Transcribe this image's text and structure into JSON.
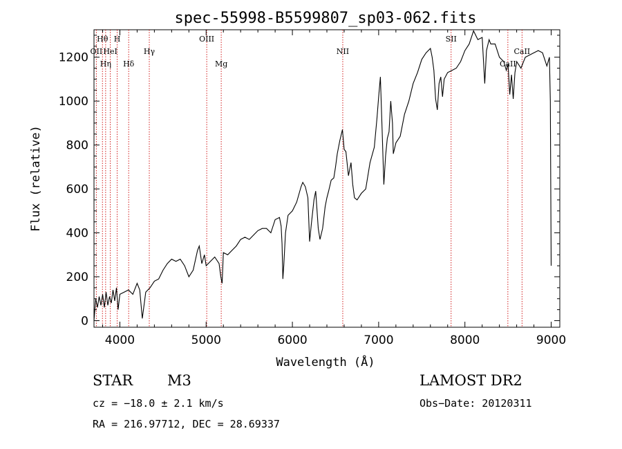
{
  "chart_data": {
    "type": "line",
    "title": "spec-55998-B5599807_sp03-062.fits",
    "xlabel": "Wavelength (Å)",
    "ylabel": "Flux (relative)",
    "xlim": [
      3700,
      9100
    ],
    "ylim": [
      -30,
      1325
    ],
    "xticks": [
      4000,
      5000,
      6000,
      7000,
      8000,
      9000
    ],
    "yticks": [
      0,
      200,
      400,
      600,
      800,
      1000,
      1200
    ],
    "grid": false,
    "series": [
      {
        "x": [
          3700,
          3720,
          3740,
          3760,
          3780,
          3800,
          3820,
          3840,
          3860,
          3880,
          3900,
          3920,
          3940,
          3960,
          3980,
          4000,
          4050,
          4100,
          4150,
          4200,
          4230,
          4260,
          4300,
          4350,
          4400,
          4450,
          4500,
          4550,
          4600,
          4650,
          4700,
          4750,
          4800,
          4850,
          4900,
          4920,
          4950,
          4980,
          5000,
          5050,
          5100,
          5150,
          5170,
          5185,
          5200,
          5250,
          5300,
          5350,
          5400,
          5450,
          5500,
          5550,
          5600,
          5650,
          5700,
          5750,
          5800,
          5850,
          5870,
          5880,
          5890,
          5900,
          5920,
          5950,
          6000,
          6050,
          6100,
          6120,
          6150,
          6180,
          6200,
          6220,
          6250,
          6270,
          6300,
          6320,
          6350,
          6380,
          6400,
          6420,
          6450,
          6480,
          6500,
          6520,
          6550,
          6580,
          6600,
          6620,
          6650,
          6680,
          6700,
          6720,
          6750,
          6800,
          6850,
          6900,
          6950,
          6980,
          7000,
          7020,
          7040,
          7060,
          7080,
          7100,
          7120,
          7140,
          7150,
          7160,
          7170,
          7200,
          7250,
          7300,
          7350,
          7400,
          7450,
          7500,
          7550,
          7600,
          7620,
          7640,
          7660,
          7680,
          7700,
          7720,
          7740,
          7760,
          7800,
          7850,
          7900,
          7950,
          8000,
          8050,
          8100,
          8150,
          8200,
          8230,
          8250,
          8280,
          8300,
          8350,
          8400,
          8450,
          8480,
          8500,
          8520,
          8540,
          8560,
          8580,
          8600,
          8650,
          8700,
          8750,
          8800,
          8850,
          8900,
          8950,
          8980,
          8990,
          9000
        ],
        "values": [
          0,
          100,
          60,
          110,
          70,
          120,
          60,
          130,
          70,
          110,
          80,
          140,
          90,
          150,
          50,
          120,
          130,
          140,
          120,
          170,
          140,
          10,
          130,
          150,
          180,
          190,
          230,
          260,
          280,
          270,
          280,
          250,
          200,
          230,
          320,
          340,
          260,
          300,
          250,
          270,
          290,
          260,
          200,
          170,
          310,
          300,
          320,
          340,
          370,
          380,
          370,
          390,
          410,
          420,
          420,
          400,
          460,
          470,
          430,
          350,
          190,
          250,
          400,
          480,
          500,
          540,
          610,
          630,
          610,
          560,
          360,
          440,
          550,
          590,
          420,
          370,
          420,
          520,
          560,
          590,
          640,
          650,
          700,
          760,
          820,
          870,
          780,
          770,
          660,
          720,
          620,
          560,
          550,
          580,
          600,
          720,
          790,
          920,
          1020,
          1110,
          870,
          620,
          750,
          830,
          860,
          1000,
          950,
          900,
          760,
          810,
          840,
          940,
          1000,
          1080,
          1130,
          1190,
          1220,
          1240,
          1200,
          1140,
          1010,
          960,
          1080,
          1110,
          1020,
          1100,
          1130,
          1140,
          1150,
          1180,
          1230,
          1260,
          1320,
          1280,
          1290,
          1080,
          1230,
          1280,
          1260,
          1260,
          1200,
          1180,
          1140,
          1170,
          1030,
          1120,
          1010,
          1130,
          1180,
          1150,
          1200,
          1210,
          1220,
          1230,
          1220,
          1160,
          1200,
          1000,
          250
        ]
      }
    ],
    "line_markers": [
      {
        "name": "OII",
        "x": 3727,
        "row": 2
      },
      {
        "name": "Hθ",
        "x": 3798,
        "row": 1
      },
      {
        "name": "Hη",
        "x": 3835,
        "row": 3
      },
      {
        "name": "HeI",
        "x": 3889,
        "row": 2
      },
      {
        "name": "H",
        "x": 3969,
        "row": 1
      },
      {
        "name": "Hδ",
        "x": 4102,
        "row": 3
      },
      {
        "name": "Hγ",
        "x": 4341,
        "row": 2
      },
      {
        "name": "OIII",
        "x": 5007,
        "row": 1
      },
      {
        "name": "Mg",
        "x": 5175,
        "row": 3
      },
      {
        "name": "NII",
        "x": 6584,
        "row": 2
      },
      {
        "name": "SII",
        "x": 7840,
        "row": 1
      },
      {
        "name": "CaII",
        "x": 8498,
        "row": 3
      },
      {
        "name": "CaII",
        "x": 8662,
        "row": 2
      }
    ],
    "colors": {
      "spectrum": "#000000",
      "markers": "#cc0000"
    }
  },
  "info": {
    "class_label": "STAR",
    "subclass": "M3",
    "survey": "LAMOST DR2",
    "cz": "cz = −18.0 ± 2.1 km/s",
    "obs_date": "Obs−Date: 20120311",
    "coords": "RA = 216.97712, DEC =  28.69337"
  }
}
